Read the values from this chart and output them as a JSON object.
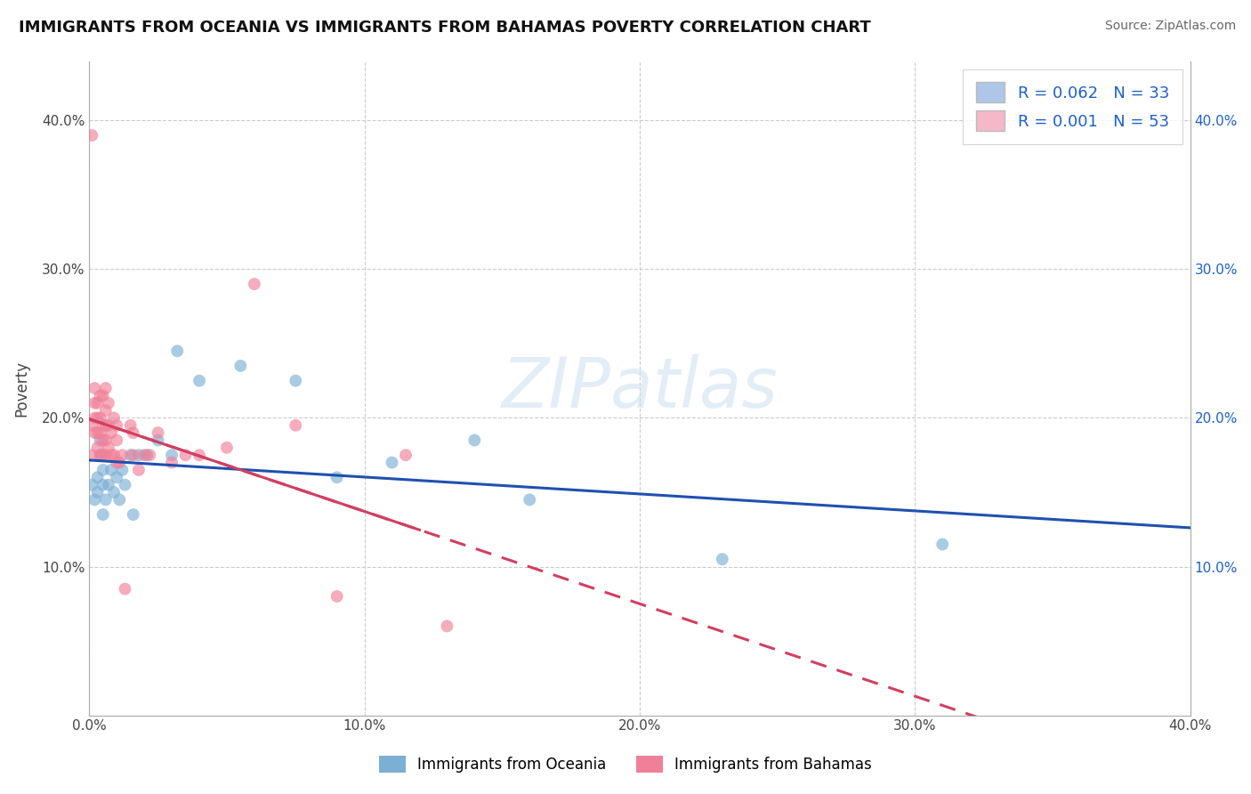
{
  "title": "IMMIGRANTS FROM OCEANIA VS IMMIGRANTS FROM BAHAMAS POVERTY CORRELATION CHART",
  "source": "Source: ZipAtlas.com",
  "ylabel": "Poverty",
  "xlim": [
    0.0,
    0.4
  ],
  "ylim": [
    0.0,
    0.44
  ],
  "xticks": [
    0.0,
    0.1,
    0.2,
    0.3,
    0.4
  ],
  "yticks": [
    0.1,
    0.2,
    0.3,
    0.4
  ],
  "xticklabels": [
    "0.0%",
    "10.0%",
    "20.0%",
    "30.0%",
    "40.0%"
  ],
  "yticklabels": [
    "10.0%",
    "20.0%",
    "30.0%",
    "40.0%"
  ],
  "legend_label1": "R = 0.062   N = 33",
  "legend_label2": "R = 0.001   N = 53",
  "legend_color1": "#aec6e8",
  "legend_color2": "#f4b8c8",
  "series1_color": "#7bafd4",
  "series2_color": "#f08098",
  "series1_line_color": "#2050b0",
  "series2_line_color": "#d04060",
  "watermark_text": "ZIPatlas",
  "bg": "#ffffff",
  "grid_color": "#cccccc",
  "bottom_legend1": "Immigrants from Oceania",
  "bottom_legend2": "Immigrants from Bahamas",
  "oceania_x": [
    0.001,
    0.002,
    0.003,
    0.003,
    0.004,
    0.004,
    0.005,
    0.005,
    0.005,
    0.006,
    0.007,
    0.008,
    0.009,
    0.01,
    0.011,
    0.012,
    0.013,
    0.015,
    0.016,
    0.018,
    0.021,
    0.025,
    0.03,
    0.032,
    0.04,
    0.055,
    0.075,
    0.09,
    0.11,
    0.14,
    0.16,
    0.23,
    0.31
  ],
  "oceania_y": [
    0.155,
    0.145,
    0.15,
    0.16,
    0.175,
    0.185,
    0.135,
    0.155,
    0.165,
    0.145,
    0.155,
    0.165,
    0.15,
    0.16,
    0.145,
    0.165,
    0.155,
    0.175,
    0.135,
    0.175,
    0.175,
    0.185,
    0.175,
    0.245,
    0.225,
    0.235,
    0.225,
    0.16,
    0.17,
    0.185,
    0.145,
    0.105,
    0.115
  ],
  "bahamas_x": [
    0.001,
    0.001,
    0.001,
    0.002,
    0.002,
    0.002,
    0.002,
    0.003,
    0.003,
    0.003,
    0.003,
    0.004,
    0.004,
    0.004,
    0.004,
    0.005,
    0.005,
    0.005,
    0.005,
    0.006,
    0.006,
    0.006,
    0.006,
    0.006,
    0.007,
    0.007,
    0.007,
    0.008,
    0.008,
    0.009,
    0.009,
    0.01,
    0.01,
    0.01,
    0.011,
    0.012,
    0.013,
    0.015,
    0.016,
    0.016,
    0.018,
    0.02,
    0.022,
    0.025,
    0.03,
    0.035,
    0.04,
    0.05,
    0.06,
    0.075,
    0.09,
    0.115,
    0.13
  ],
  "bahamas_y": [
    0.39,
    0.175,
    0.195,
    0.19,
    0.2,
    0.21,
    0.22,
    0.18,
    0.19,
    0.2,
    0.21,
    0.175,
    0.19,
    0.2,
    0.215,
    0.175,
    0.185,
    0.195,
    0.215,
    0.175,
    0.185,
    0.195,
    0.205,
    0.22,
    0.18,
    0.195,
    0.21,
    0.175,
    0.19,
    0.175,
    0.2,
    0.17,
    0.185,
    0.195,
    0.17,
    0.175,
    0.085,
    0.195,
    0.175,
    0.19,
    0.165,
    0.175,
    0.175,
    0.19,
    0.17,
    0.175,
    0.175,
    0.18,
    0.29,
    0.195,
    0.08,
    0.175,
    0.06
  ]
}
